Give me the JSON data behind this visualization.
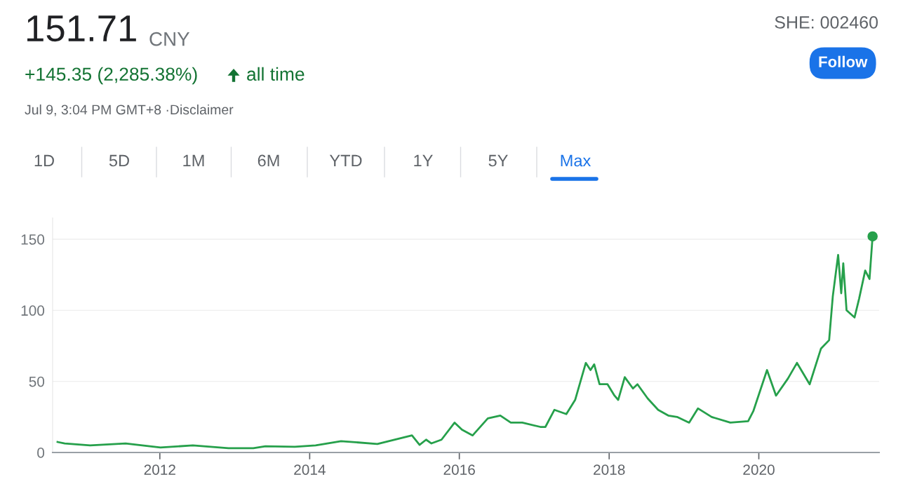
{
  "chart_data": {
    "type": "line",
    "title": "151.71",
    "annotations": [
      "CNY",
      "+145.35 (2,285.38%)",
      "all time",
      "Jul 9, 3:04 PM GMT+8 ·Disclaimer",
      "SHE: 002460",
      "Follow",
      "1D",
      "5D",
      "1M",
      "6M",
      "YTD",
      "1Y",
      "5Y",
      "Max"
    ],
    "series": [
      {
        "color": "#26a04b",
        "x": [
          "2010-08-20",
          "2010-09-24",
          "2011-01-26",
          "2011-07-18",
          "2012-01-04",
          "2012-06-10",
          "2012-12-01",
          "2013-04-01",
          "2013-05-30",
          "2013-10-20",
          "2014-01-30",
          "2014-06-03",
          "2014-11-27",
          "2015-05-15",
          "2015-06-21",
          "2015-07-23",
          "2015-08-18",
          "2015-10-06",
          "2015-12-09",
          "2016-01-14",
          "2016-03-06",
          "2016-05-19",
          "2016-07-19",
          "2016-09-08",
          "2016-11-03",
          "2017-01-30",
          "2017-02-24",
          "2017-04-09",
          "2017-06-06",
          "2017-07-19",
          "2017-09-09",
          "2017-10-02",
          "2017-10-20",
          "2017-11-15",
          "2017-12-24",
          "2018-01-27",
          "2018-02-14",
          "2018-03-18",
          "2018-04-27",
          "2018-05-19",
          "2018-07-08",
          "2018-08-28",
          "2018-10-16",
          "2018-11-28",
          "2019-01-26",
          "2019-03-10",
          "2019-05-16",
          "2019-08-15",
          "2019-11-10",
          "2019-12-05",
          "2020-02-10",
          "2020-03-25",
          "2020-05-22",
          "2020-07-05",
          "2020-09-05",
          "2020-10-30",
          "2020-12-09",
          "2020-12-27",
          "2021-01-22",
          "2021-02-06",
          "2021-02-16",
          "2021-03-04",
          "2021-04-12",
          "2021-05-04",
          "2021-06-03",
          "2021-06-24",
          "2021-07-09"
        ],
        "values": [
          7.4,
          6.4,
          5,
          6.4,
          3.5,
          5,
          3,
          3,
          4.4,
          4,
          5,
          8,
          6,
          12,
          5.4,
          9,
          6.4,
          9,
          21,
          16,
          12,
          24,
          26,
          21,
          21,
          18,
          18,
          30,
          27,
          37,
          63,
          58,
          62,
          48,
          48,
          40,
          37,
          53,
          45,
          48,
          38,
          30,
          26,
          25,
          21,
          31,
          25,
          21,
          22,
          29,
          58,
          40,
          52,
          63,
          48,
          73,
          79,
          110,
          139,
          112,
          133,
          100,
          95,
          108,
          128,
          122,
          152
        ]
      },
      {
        "type": "scatter",
        "color": "#26a04b",
        "x": [
          "2021-07-09"
        ],
        "values": [
          152
        ]
      }
    ],
    "xlim": [
      "2010-07-27",
      "2021-08-10"
    ],
    "xticks": [
      {
        "value": "2012-01-01",
        "label": "2012"
      },
      {
        "value": "2014-01-01",
        "label": "2014"
      },
      {
        "value": "2016-01-01",
        "label": "2016"
      },
      {
        "value": "2018-01-01",
        "label": "2018"
      },
      {
        "value": "2020-01-01",
        "label": "2020"
      }
    ],
    "ylim": [
      0,
      165
    ],
    "yticks": [
      0,
      50,
      100,
      150
    ],
    "grid": "y"
  }
}
